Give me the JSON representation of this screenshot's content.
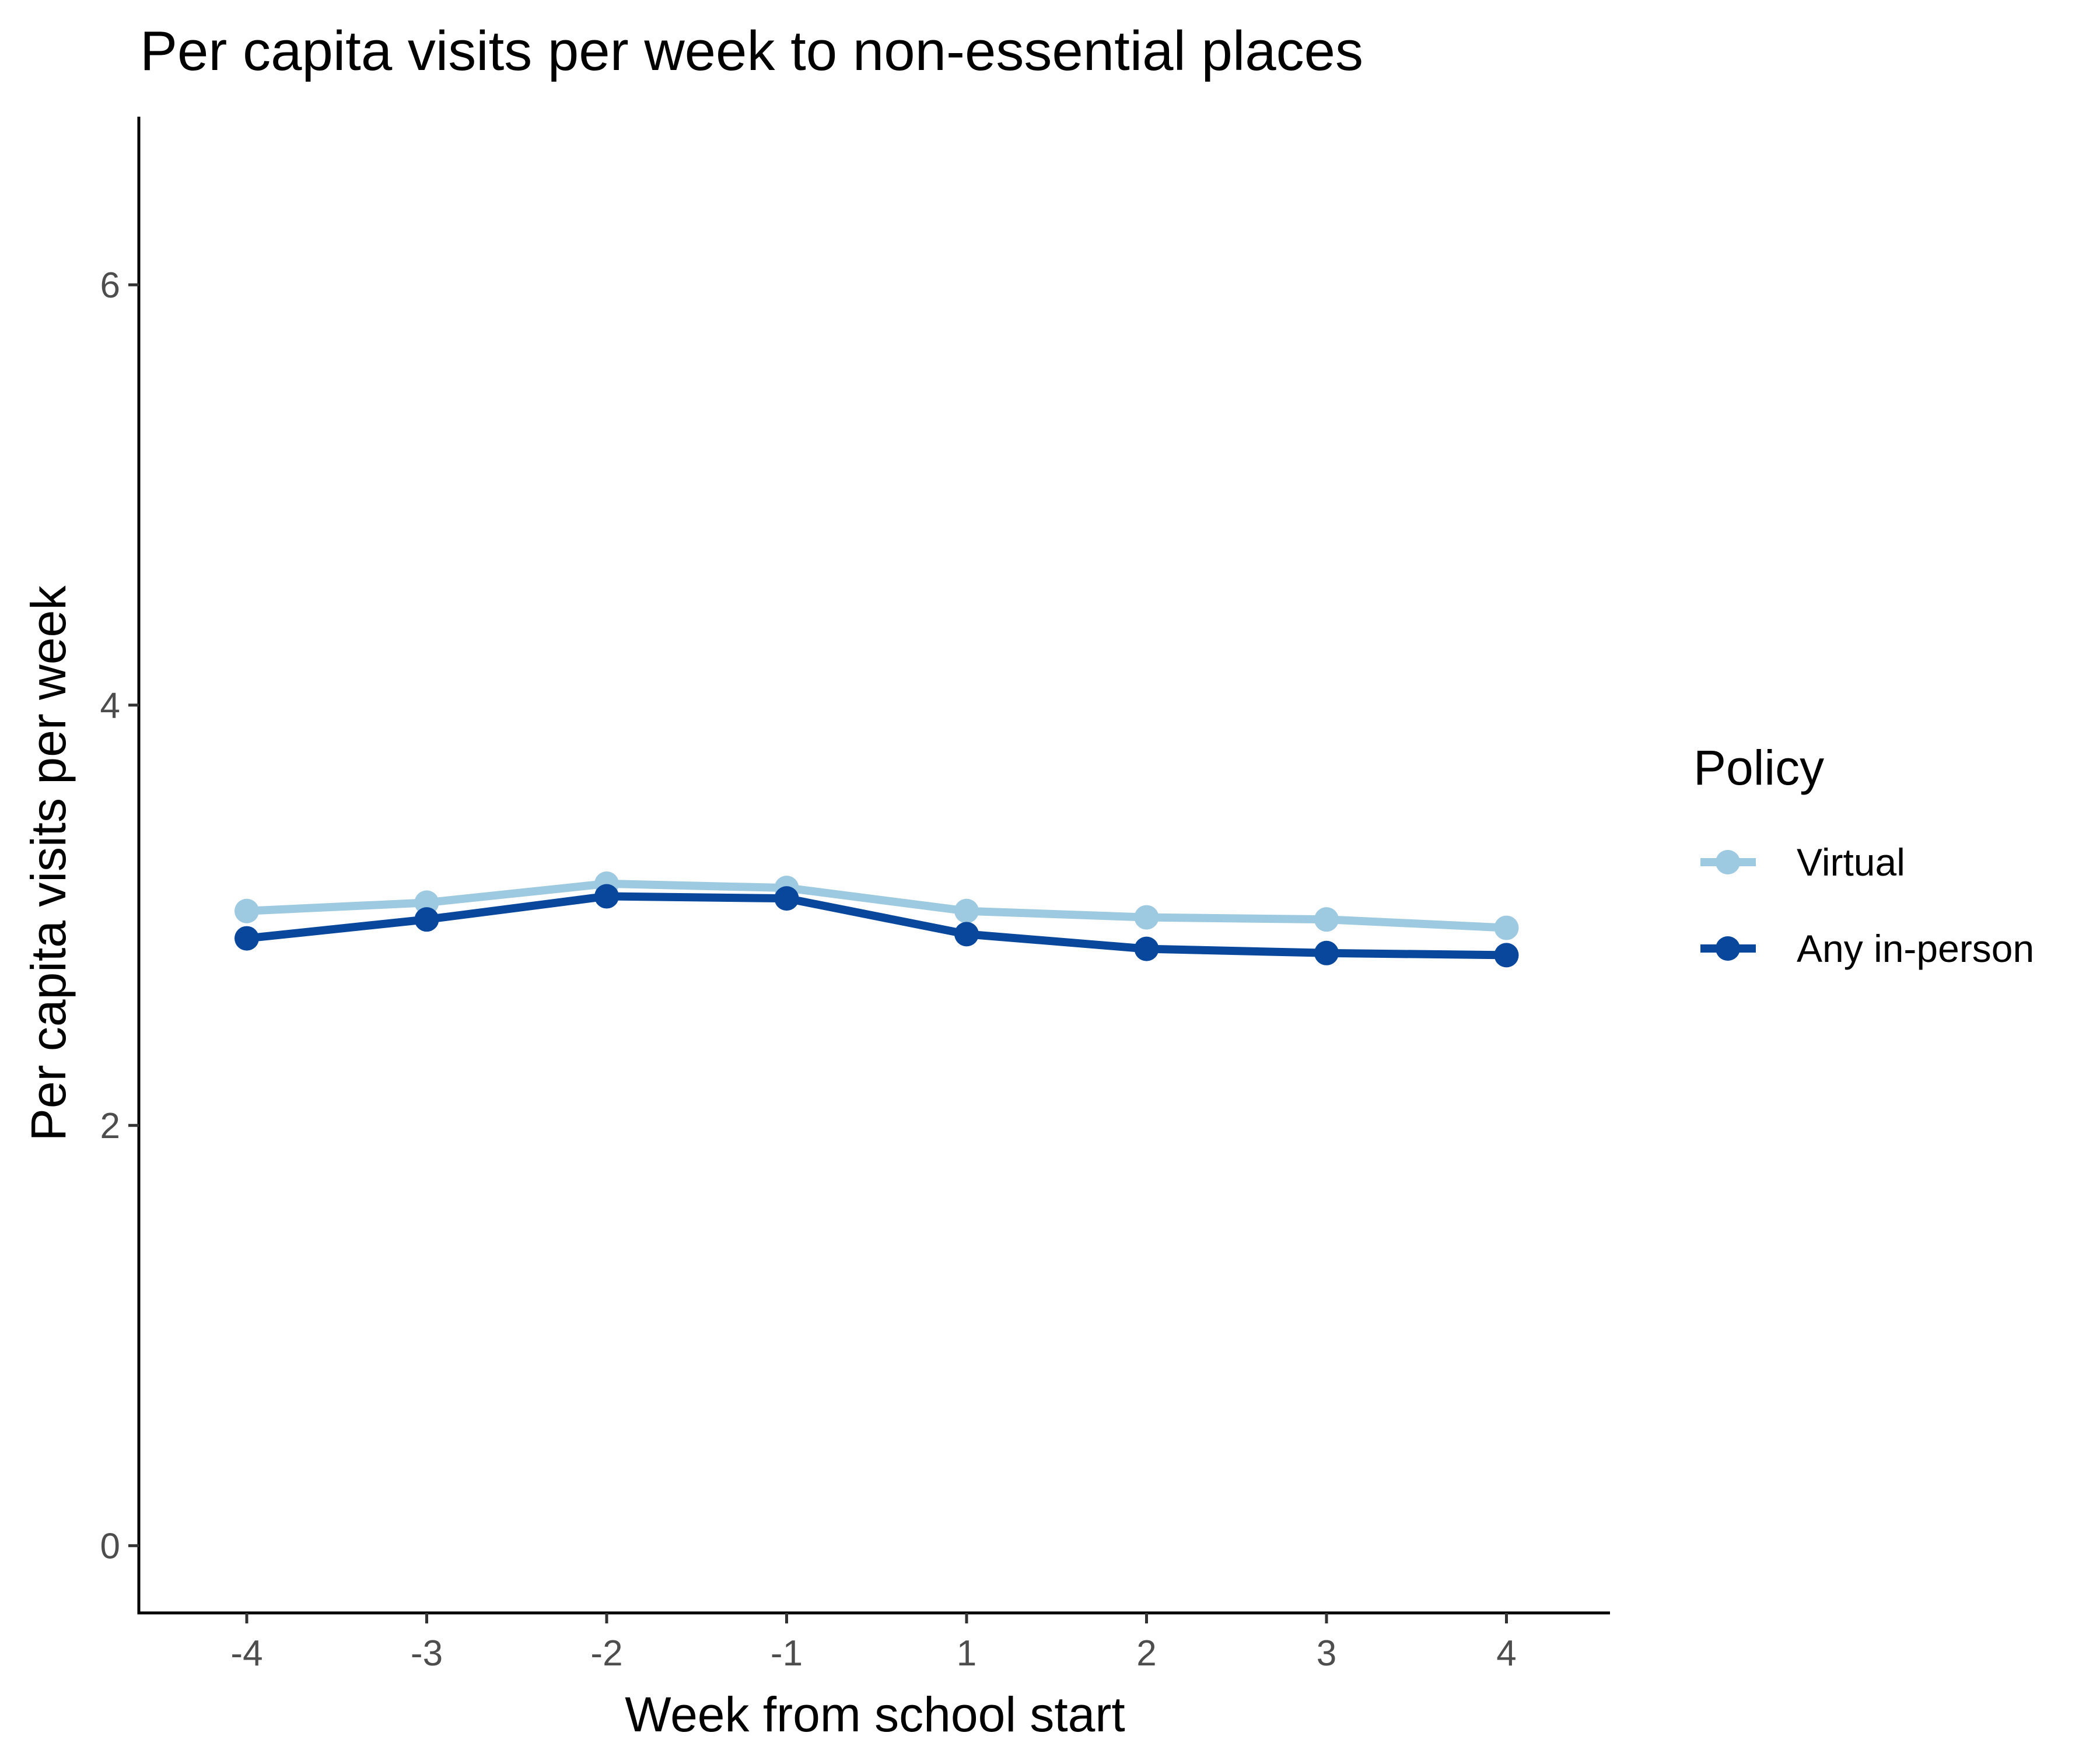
{
  "chart_data": {
    "type": "line",
    "title": "Per capita visits per week to non-essential places",
    "xlabel": "Week from school start",
    "ylabel": "Per capita visits per week",
    "categories": [
      "-4",
      "-3",
      "-2",
      "-1",
      "1",
      "2",
      "3",
      "4"
    ],
    "y_ticks": [
      "0",
      "2",
      "4",
      "6"
    ],
    "ylim": [
      -0.32,
      6.8
    ],
    "legend": {
      "title": "Policy",
      "position": "right"
    },
    "grid": false,
    "series": [
      {
        "name": "Virtual",
        "color": "#9ecae1",
        "values": [
          3.02,
          3.06,
          3.15,
          3.13,
          3.02,
          2.99,
          2.98,
          2.94
        ]
      },
      {
        "name": "Any in-person",
        "color": "#08479c",
        "values": [
          2.89,
          2.98,
          3.09,
          3.08,
          2.91,
          2.84,
          2.82,
          2.81
        ]
      }
    ]
  }
}
